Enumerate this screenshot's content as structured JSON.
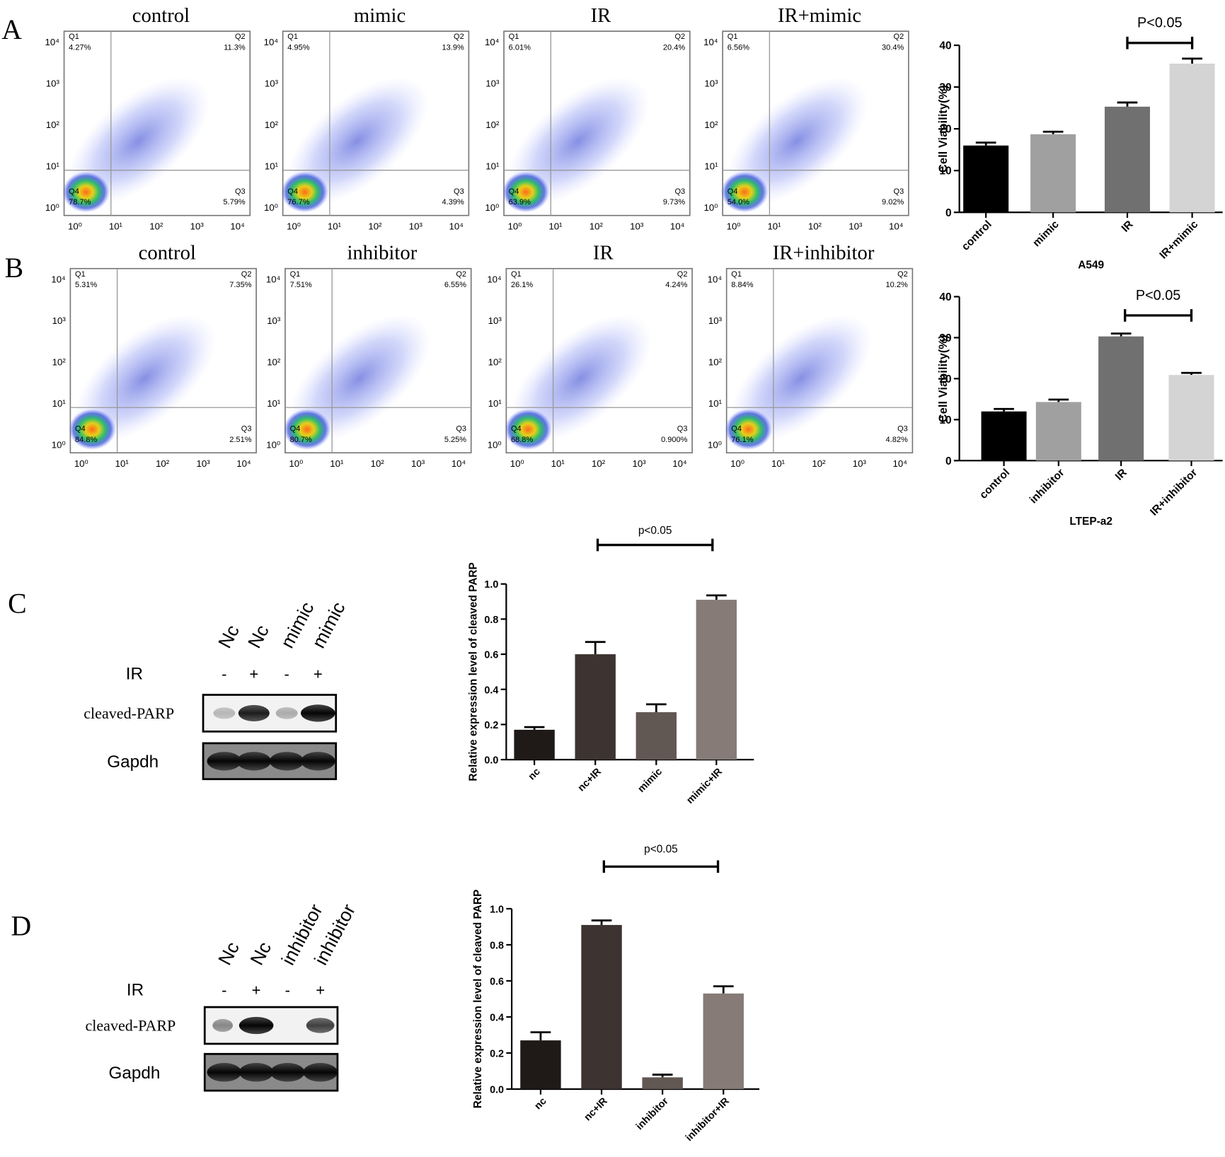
{
  "panel_labels": [
    "A",
    "B",
    "C",
    "D"
  ],
  "flow_ticks": [
    "10⁰",
    "10¹",
    "10²",
    "10³",
    "10⁴"
  ],
  "flow_rows": [
    {
      "plots": [
        {
          "title": "control",
          "quadrants": [
            {
              "name": "Q1",
              "value": "4.27%"
            },
            {
              "name": "Q2",
              "value": "11.3%"
            },
            {
              "name": "Q3",
              "value": "5.79%"
            },
            {
              "name": "Q4",
              "value": "78.7%"
            }
          ]
        },
        {
          "title": "mimic",
          "quadrants": [
            {
              "name": "Q1",
              "value": "4.95%"
            },
            {
              "name": "Q2",
              "value": "13.9%"
            },
            {
              "name": "Q3",
              "value": "4.39%"
            },
            {
              "name": "Q4",
              "value": "76.7%"
            }
          ]
        },
        {
          "title": "IR",
          "quadrants": [
            {
              "name": "Q1",
              "value": "6.01%"
            },
            {
              "name": "Q2",
              "value": "20.4%"
            },
            {
              "name": "Q3",
              "value": "9.73%"
            },
            {
              "name": "Q4",
              "value": "63.9%"
            }
          ]
        },
        {
          "title": "IR+mimic",
          "quadrants": [
            {
              "name": "Q1",
              "value": "6.56%"
            },
            {
              "name": "Q2",
              "value": "30.4%"
            },
            {
              "name": "Q3",
              "value": "9.02%"
            },
            {
              "name": "Q4",
              "value": "54.0%"
            }
          ]
        }
      ]
    },
    {
      "plots": [
        {
          "title": "control",
          "quadrants": [
            {
              "name": "Q1",
              "value": "5.31%"
            },
            {
              "name": "Q2",
              "value": "7.35%"
            },
            {
              "name": "Q3",
              "value": "2.51%"
            },
            {
              "name": "Q4",
              "value": "84.8%"
            }
          ]
        },
        {
          "title": "inhibitor",
          "quadrants": [
            {
              "name": "Q1",
              "value": "7.51%"
            },
            {
              "name": "Q2",
              "value": "6.55%"
            },
            {
              "name": "Q3",
              "value": "5.25%"
            },
            {
              "name": "Q4",
              "value": "80.7%"
            }
          ]
        },
        {
          "title": "IR",
          "quadrants": [
            {
              "name": "Q1",
              "value": "26.1%"
            },
            {
              "name": "Q2",
              "value": "4.24%"
            },
            {
              "name": "Q3",
              "value": "0.900%"
            },
            {
              "name": "Q4",
              "value": "68.8%"
            }
          ]
        },
        {
          "title": "IR+inhibitor",
          "quadrants": [
            {
              "name": "Q1",
              "value": "8.84%"
            },
            {
              "name": "Q2",
              "value": "10.2%"
            },
            {
              "name": "Q3",
              "value": "4.82%"
            },
            {
              "name": "Q4",
              "value": "76.1%"
            }
          ]
        }
      ]
    }
  ],
  "chart_data": [
    {
      "type": "bar",
      "categories": [
        "control",
        "mimic",
        "IR",
        "IR+mimic"
      ],
      "values": [
        16,
        18.7,
        25.3,
        35.6
      ],
      "errors": [
        0.7,
        0.6,
        1,
        1.2
      ],
      "colors": [
        "#000000",
        "#a0a0a0",
        "#707070",
        "#d4d4d4"
      ],
      "ylim": [
        0,
        40
      ],
      "yticks": [
        0,
        10,
        20,
        30,
        40
      ],
      "ylabel": "Cell Viability(%)",
      "xlabel": "A549",
      "annotation": "P<0.05"
    },
    {
      "type": "bar",
      "categories": [
        "control",
        "inhibitor",
        "IR",
        "IR+inhibitor"
      ],
      "values": [
        12,
        14.3,
        30.3,
        20.9
      ],
      "errors": [
        0.6,
        0.6,
        0.7,
        0.5
      ],
      "colors": [
        "#000000",
        "#a0a0a0",
        "#707070",
        "#d4d4d4"
      ],
      "ylim": [
        0,
        40
      ],
      "yticks": [
        0,
        10,
        20,
        30,
        40
      ],
      "ylabel": "Cell Viability(%)",
      "xlabel": "LTEP-a2",
      "annotation": "P<0.05"
    },
    {
      "type": "bar",
      "categories": [
        "nc",
        "nc+IR",
        "mimic",
        "mimic+IR"
      ],
      "values": [
        0.17,
        0.6,
        0.27,
        0.91
      ],
      "errors": [
        0.015,
        0.07,
        0.045,
        0.025
      ],
      "colors": [
        "#1f1a18",
        "#3d3431",
        "#625853",
        "#867b77"
      ],
      "ylim": [
        0,
        1
      ],
      "yticks": [
        {
          "value": 0,
          "label": "0.0"
        },
        0.2,
        0.4,
        0.6,
        0.8,
        {
          "value": 1,
          "label": "1.0"
        }
      ],
      "ylabel": "Relative expression level of cleaved PARP",
      "annotation": "p<0.05"
    },
    {
      "type": "bar",
      "categories": [
        "nc",
        "nc+IR",
        "inhibitor",
        "inhibitor+IR"
      ],
      "values": [
        0.27,
        0.91,
        0.065,
        0.53
      ],
      "errors": [
        0.045,
        0.025,
        0.015,
        0.04
      ],
      "colors": [
        "#1f1a18",
        "#3d3431",
        "#625853",
        "#867b77"
      ],
      "ylim": [
        0,
        1
      ],
      "yticks": [
        {
          "value": 0,
          "label": "0.0"
        },
        0.2,
        0.4,
        0.6,
        0.8,
        {
          "value": 1,
          "label": "1.0"
        }
      ],
      "ylabel": "Relative expression level of cleaved PARP",
      "annotation": "p<0.05"
    }
  ],
  "blots": [
    {
      "lanes": [
        "Nc",
        "Nc",
        "mimic",
        "mimic"
      ],
      "ir_label": "IR",
      "ir": [
        "-",
        "+",
        "-",
        "+"
      ],
      "rows": [
        "cleaved-PARP",
        "Gapdh"
      ]
    },
    {
      "lanes": [
        "Nc",
        "Nc",
        "inhibitor",
        "inhibitor"
      ],
      "ir_label": "IR",
      "ir": [
        "-",
        "+",
        "-",
        "+"
      ],
      "rows": [
        "cleaved-PARP",
        "Gapdh"
      ]
    }
  ]
}
